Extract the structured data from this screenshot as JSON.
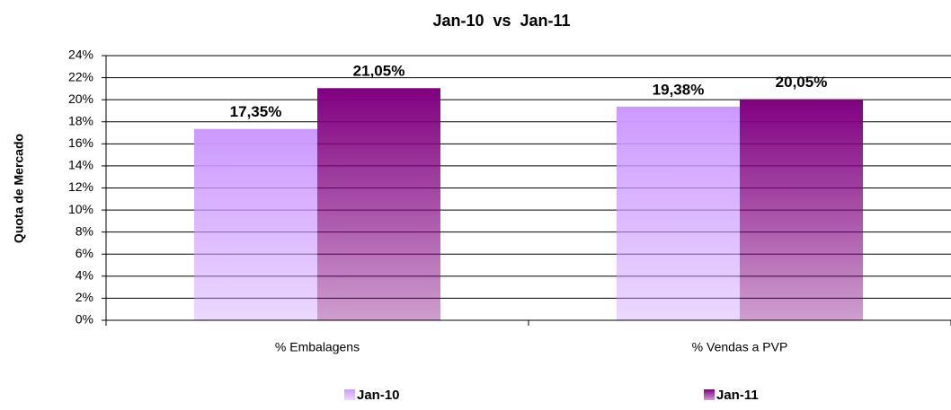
{
  "chart_data": {
    "type": "bar",
    "title": "Jan-10  vs  Jan-11",
    "y_label": "Quota de Mercado",
    "categories": [
      "% Embalagens",
      "% Vendas a PVP"
    ],
    "series": [
      {
        "name": "Jan-10",
        "color": "#cc99ff",
        "values": [
          17.35,
          19.38
        ],
        "value_labels": [
          "17,35%",
          "19,38%"
        ]
      },
      {
        "name": "Jan-11",
        "color": "#800080",
        "values": [
          21.05,
          20.05
        ],
        "value_labels": [
          "21,05%",
          "20,05%"
        ]
      }
    ],
    "ylim": [
      0,
      24
    ],
    "yticks": [
      {
        "value": 0,
        "label": "0%"
      },
      {
        "value": 2,
        "label": "2%"
      },
      {
        "value": 4,
        "label": "4%"
      },
      {
        "value": 6,
        "label": "6%"
      },
      {
        "value": 8,
        "label": "8%"
      },
      {
        "value": 10,
        "label": "10%"
      },
      {
        "value": 12,
        "label": "12%"
      },
      {
        "value": 14,
        "label": "14%"
      },
      {
        "value": 16,
        "label": "16%"
      },
      {
        "value": 18,
        "label": "18%"
      },
      {
        "value": 20,
        "label": "20%"
      },
      {
        "value": 22,
        "label": "22%"
      },
      {
        "value": 24,
        "label": "24%"
      }
    ],
    "grid": true
  }
}
